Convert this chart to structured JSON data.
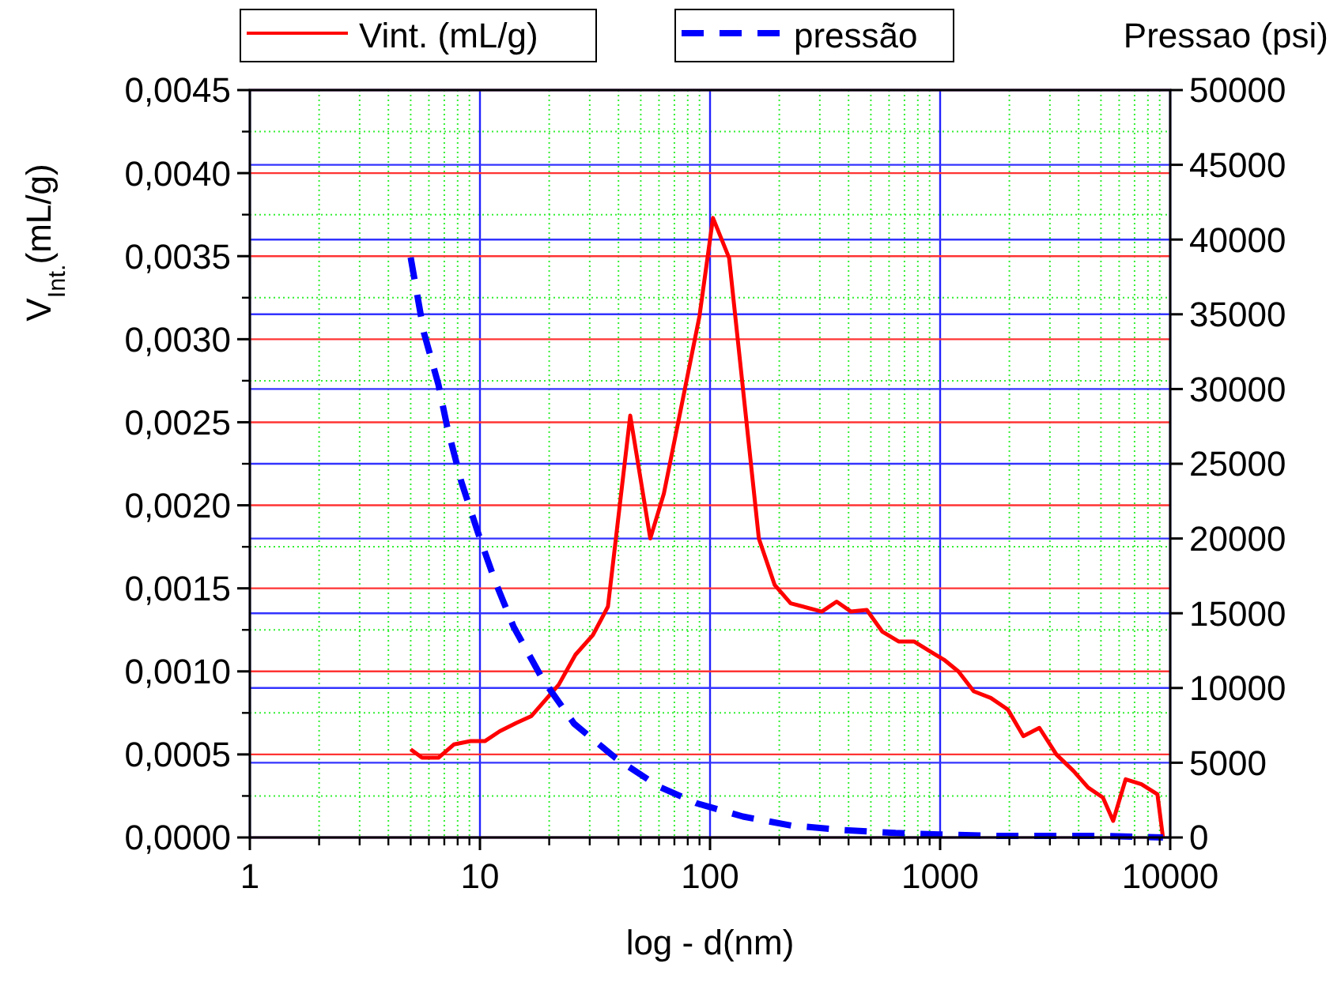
{
  "chart_data": {
    "type": "line",
    "xlabel": "log - d(nm)",
    "ylabel": "V$_{Int.}$(mL/g)",
    "y2label": "Pressao (psi)",
    "log": "x",
    "grid": true,
    "legend": "top",
    "marker": "none",
    "xlim": [
      1,
      10000
    ],
    "xticks": [
      1,
      {
        "value": 2,
        "label": null
      },
      {
        "value": 3,
        "label": null
      },
      {
        "value": 4,
        "label": null
      },
      {
        "value": 5,
        "label": null
      },
      {
        "value": 6,
        "label": null
      },
      {
        "value": 7,
        "label": null
      },
      {
        "value": 8,
        "label": null
      },
      {
        "value": 9,
        "label": null
      },
      10,
      {
        "value": 20,
        "label": null
      },
      {
        "value": 30,
        "label": null
      },
      {
        "value": 40,
        "label": null
      },
      {
        "value": 50,
        "label": null
      },
      {
        "value": 60,
        "label": null
      },
      {
        "value": 70,
        "label": null
      },
      {
        "value": 80,
        "label": null
      },
      {
        "value": 90,
        "label": null
      },
      100,
      {
        "value": 200,
        "label": null
      },
      {
        "value": 300,
        "label": null
      },
      {
        "value": 400,
        "label": null
      },
      {
        "value": 500,
        "label": null
      },
      {
        "value": 600,
        "label": null
      },
      {
        "value": 700,
        "label": null
      },
      {
        "value": 800,
        "label": null
      },
      {
        "value": 900,
        "label": null
      },
      1000,
      {
        "value": 2000,
        "label": null
      },
      {
        "value": 3000,
        "label": null
      },
      {
        "value": 4000,
        "label": null
      },
      {
        "value": 5000,
        "label": null
      },
      {
        "value": 6000,
        "label": null
      },
      {
        "value": 7000,
        "label": null
      },
      {
        "value": 8000,
        "label": null
      },
      {
        "value": 9000,
        "label": null
      },
      10000
    ],
    "ylim": [
      0,
      0.0045
    ],
    "yticks": [
      {
        "value": 0,
        "label": "0,0000"
      },
      {
        "value": 0.00025,
        "label": null
      },
      {
        "value": 0.0005,
        "label": "0,0005"
      },
      {
        "value": 0.00075,
        "label": null
      },
      {
        "value": 0.001,
        "label": "0,0010"
      },
      {
        "value": 0.00125,
        "label": null
      },
      {
        "value": 0.0015,
        "label": "0,0015"
      },
      {
        "value": 0.00175,
        "label": null
      },
      {
        "value": 0.002,
        "label": "0,0020"
      },
      {
        "value": 0.00225,
        "label": null
      },
      {
        "value": 0.0025,
        "label": "0,0025"
      },
      {
        "value": 0.00275,
        "label": null
      },
      {
        "value": 0.003,
        "label": "0,0030"
      },
      {
        "value": 0.00325,
        "label": null
      },
      {
        "value": 0.0035,
        "label": "0,0035"
      },
      {
        "value": 0.00375,
        "label": null
      },
      {
        "value": 0.004,
        "label": "0,0040"
      },
      {
        "value": 0.00425,
        "label": null
      },
      {
        "value": 0.0045,
        "label": "0,0045"
      }
    ],
    "y2lim": [
      0,
      50000
    ],
    "y2ticks": [
      0,
      5000,
      10000,
      15000,
      20000,
      25000,
      30000,
      35000,
      40000,
      45000,
      50000
    ],
    "series": [
      {
        "name": "Vint. (mL/g)",
        "color": "#ff0000",
        "line_style": "solid",
        "x": [
          5.0,
          5.6,
          6.6,
          7.7,
          9.1,
          10.5,
          12.2,
          14.4,
          16.7,
          19.6,
          22,
          26,
          31,
          36,
          45,
          55,
          63,
          72,
          90,
          103,
          121,
          163,
          191,
          224,
          306,
          355,
          410,
          480,
          560,
          660,
          770,
          930,
          1040,
          1200,
          1400,
          1660,
          1970,
          2300,
          2700,
          3200,
          3800,
          4400,
          5100,
          5650,
          6400,
          7500,
          8800,
          9300
        ],
        "values": [
          0.00053,
          0.00048,
          0.00048,
          0.00056,
          0.00058,
          0.00058,
          0.00064,
          0.00069,
          0.00073,
          0.00084,
          0.00092,
          0.0011,
          0.00122,
          0.00139,
          0.00254,
          0.0018,
          0.00207,
          0.00247,
          0.00314,
          0.00373,
          0.00349,
          0.0018,
          0.00152,
          0.00141,
          0.00136,
          0.00142,
          0.00136,
          0.00137,
          0.00124,
          0.00118,
          0.00118,
          0.00111,
          0.00107,
          0.001,
          0.00088,
          0.00084,
          0.00077,
          0.00061,
          0.00066,
          0.0005,
          0.0004,
          0.0003,
          0.00024,
          0.0001,
          0.00035,
          0.00032,
          0.00026,
          0
        ]
      },
      {
        "name": "pressão",
        "color": "#0000ff",
        "line_style": "dashed",
        "axis": "y2",
        "x": [
          5.0,
          5.7,
          6.6,
          7.2,
          8.3,
          9.8,
          11.6,
          14,
          18.7,
          25.7,
          39,
          60,
          87,
          139,
          225,
          376,
          640,
          1000,
          1800,
          3200,
          5300,
          9300
        ],
        "values": [
          38800,
          33800,
          30300,
          27500,
          23800,
          20400,
          17200,
          14100,
          10600,
          7600,
          5300,
          3400,
          2300,
          1400,
          800,
          500,
          300,
          200,
          100,
          100,
          100,
          0
        ]
      }
    ]
  }
}
